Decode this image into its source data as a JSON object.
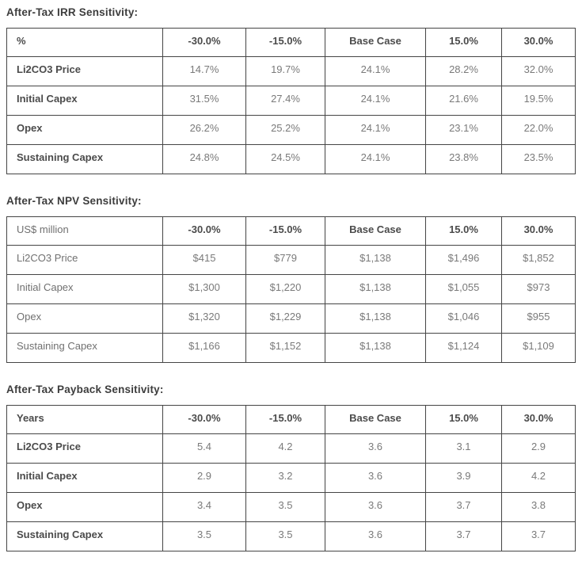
{
  "report": {
    "colors": {
      "border": "#454545",
      "title_text": "#3d3d3d",
      "header_text": "#4b4b4b",
      "value_text": "#7a7a7a"
    },
    "tables": [
      {
        "id": "irr-sensitivity",
        "title": "After-Tax IRR Sensitivity:",
        "unit_header": "%",
        "unit_header_bold": true,
        "bold_row_labels": true,
        "columns": [
          "-30.0%",
          "-15.0%",
          "Base Case",
          "15.0%",
          "30.0%"
        ],
        "rows": [
          {
            "label": "Li2CO3 Price",
            "values": [
              "14.7%",
              "19.7%",
              "24.1%",
              "28.2%",
              "32.0%"
            ]
          },
          {
            "label": "Initial Capex",
            "values": [
              "31.5%",
              "27.4%",
              "24.1%",
              "21.6%",
              "19.5%"
            ]
          },
          {
            "label": "Opex",
            "values": [
              "26.2%",
              "25.2%",
              "24.1%",
              "23.1%",
              "22.0%"
            ]
          },
          {
            "label": "Sustaining Capex",
            "values": [
              "24.8%",
              "24.5%",
              "24.1%",
              "23.8%",
              "23.5%"
            ]
          }
        ]
      },
      {
        "id": "npv-sensitivity",
        "title": "After-Tax NPV Sensitivity:",
        "unit_header": "US$ million",
        "unit_header_bold": false,
        "bold_row_labels": false,
        "columns": [
          "-30.0%",
          "-15.0%",
          "Base Case",
          "15.0%",
          "30.0%"
        ],
        "rows": [
          {
            "label": "Li2CO3 Price",
            "values": [
              "$415",
              "$779",
              "$1,138",
              "$1,496",
              "$1,852"
            ]
          },
          {
            "label": "Initial Capex",
            "values": [
              "$1,300",
              "$1,220",
              "$1,138",
              "$1,055",
              "$973"
            ]
          },
          {
            "label": "Opex",
            "values": [
              "$1,320",
              "$1,229",
              "$1,138",
              "$1,046",
              "$955"
            ]
          },
          {
            "label": "Sustaining Capex",
            "values": [
              "$1,166",
              "$1,152",
              "$1,138",
              "$1,124",
              "$1,109"
            ]
          }
        ]
      },
      {
        "id": "payback-sensitivity",
        "title": "After-Tax Payback Sensitivity:",
        "unit_header": "Years",
        "unit_header_bold": true,
        "bold_row_labels": true,
        "columns": [
          "-30.0%",
          "-15.0%",
          "Base Case",
          "15.0%",
          "30.0%"
        ],
        "rows": [
          {
            "label": "Li2CO3 Price",
            "values": [
              "5.4",
              "4.2",
              "3.6",
              "3.1",
              "2.9"
            ]
          },
          {
            "label": "Initial Capex",
            "values": [
              "2.9",
              "3.2",
              "3.6",
              "3.9",
              "4.2"
            ]
          },
          {
            "label": "Opex",
            "values": [
              "3.4",
              "3.5",
              "3.6",
              "3.7",
              "3.8"
            ]
          },
          {
            "label": "Sustaining Capex",
            "values": [
              "3.5",
              "3.5",
              "3.6",
              "3.7",
              "3.7"
            ]
          }
        ]
      }
    ]
  }
}
